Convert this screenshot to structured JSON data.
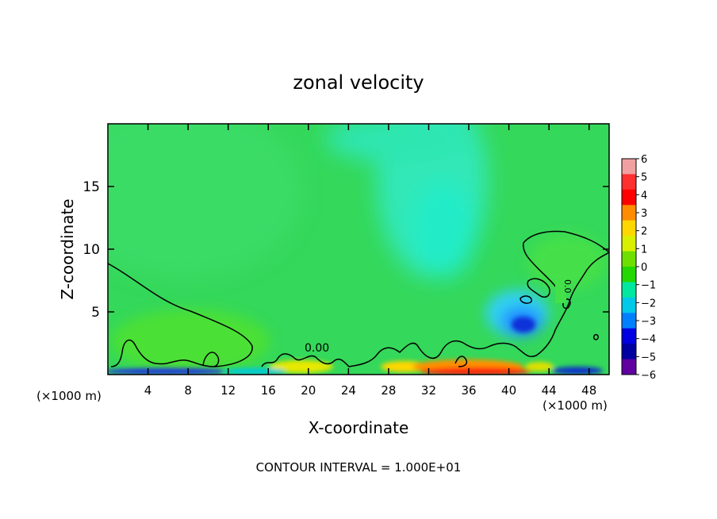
{
  "chart_data": {
    "type": "heatmap",
    "title": "zonal velocity",
    "xlabel": "X-coordinate",
    "ylabel": "Z-coordinate",
    "x_unit_left": "(×1000 m)",
    "x_unit_right": "(×1000 m)",
    "xlim": [
      0,
      50
    ],
    "ylim": [
      0,
      20
    ],
    "x_ticks": [
      4,
      8,
      12,
      16,
      20,
      24,
      28,
      32,
      36,
      40,
      44,
      48
    ],
    "y_ticks": [
      5,
      10,
      15
    ],
    "colorbar": {
      "ticks": [
        6,
        5,
        4,
        3,
        2,
        1,
        0,
        -1,
        -2,
        -3,
        -4,
        -5,
        -6
      ],
      "labels": [
        "6",
        "5",
        "4",
        "3",
        "2",
        "1",
        "0",
        "−1",
        "−2",
        "−3",
        "−4",
        "−5",
        "−6"
      ],
      "colors": [
        "#f0a0a0",
        "#ff3030",
        "#ff0000",
        "#ff8c00",
        "#ffd700",
        "#d8f000",
        "#6ee000",
        "#22d800",
        "#00e8a0",
        "#00c8e8",
        "#0080ff",
        "#0000e0",
        "#0000a0",
        "#6000a0"
      ]
    },
    "contour_labels": [
      "0.00",
      "0.0"
    ],
    "footer": "CONTOUR INTERVAL = 1.000E+01"
  }
}
